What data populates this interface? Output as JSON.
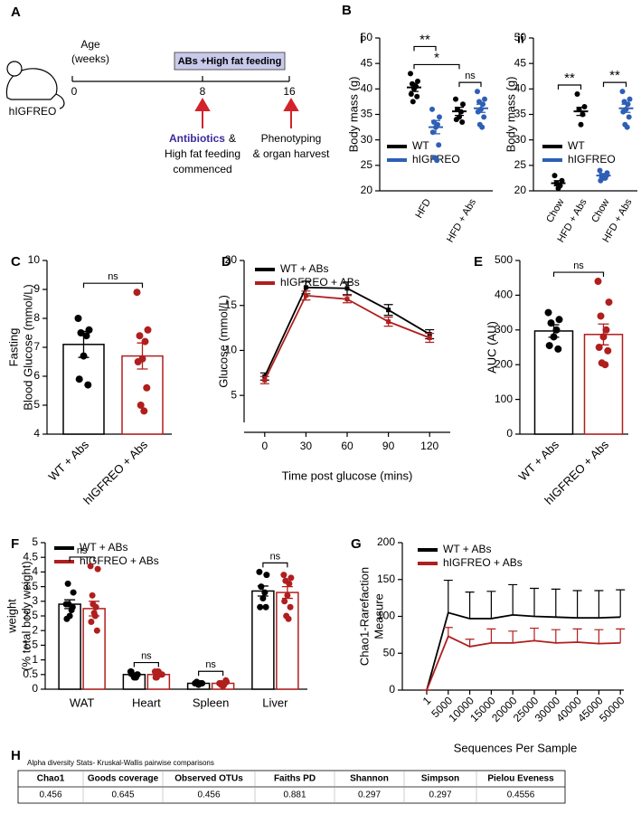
{
  "panel_labels": [
    "A",
    "B",
    "C",
    "D",
    "E",
    "F",
    "G",
    "H"
  ],
  "diagram": {
    "age_label": [
      "Age",
      "(weeks)"
    ],
    "box_label": "ABs +High fat feeding",
    "timeline": [
      0,
      8,
      16
    ],
    "mouse_label": "hIGFREO",
    "start_event": {
      "highlight": "Antibiotics",
      "lines": [
        "&",
        "High fat feeding",
        "commenced"
      ]
    },
    "end_event": [
      "Phenotyping",
      "& organ harvest"
    ]
  },
  "chart_data": [
    {
      "type": "dot",
      "subpanel": "i",
      "y_label": "Body mass (g)",
      "ylim": [
        20,
        50
      ],
      "yticks": [
        20,
        25,
        30,
        35,
        40,
        45,
        50
      ],
      "categories": [
        "HFD",
        "HFD + Abs"
      ],
      "series": [
        {
          "name": "WT",
          "color": "#000000",
          "values": [
            40.3,
            35.6
          ],
          "sems": [
            0.8,
            0.8
          ],
          "points": [
            [
              43,
              41.5,
              41,
              40.5,
              40,
              39,
              38.5,
              37.5
            ],
            [
              38,
              37,
              36,
              35.5,
              34.5,
              34,
              33.5
            ]
          ]
        },
        {
          "name": "hIGFREO",
          "color": "#2e5fb5",
          "values": [
            32.5,
            36.2
          ],
          "sems": [
            1.3,
            0.8
          ],
          "points": [
            [
              36,
              34.5,
              33.5,
              33,
              32.5,
              31.5,
              29,
              26.5,
              26
            ],
            [
              39.5,
              38,
              37.5,
              37,
              36,
              35.5,
              34.5,
              33,
              32.5
            ]
          ]
        }
      ],
      "brackets": [
        {
          "label": "*",
          "from": [
            0,
            0
          ],
          "to": [
            1,
            0
          ]
        },
        {
          "label": "**",
          "from": [
            0,
            0
          ],
          "to": [
            0,
            1
          ]
        },
        {
          "label": "ns",
          "from": [
            1,
            0
          ],
          "to": [
            1,
            1
          ]
        }
      ]
    },
    {
      "type": "dot",
      "subpanel": "ii",
      "y_label": "Body mass (g)",
      "ylim": [
        20,
        50
      ],
      "yticks": [
        20,
        25,
        30,
        35,
        40,
        45,
        50
      ],
      "categories": [
        "Chow",
        "HFD + Abs",
        "Chow",
        "HFD + Abs"
      ],
      "series": [
        {
          "name": "WT",
          "color": "#000000",
          "values": [
            21.5,
            35.6,
            null,
            null
          ],
          "sems": [
            0.5,
            0.8,
            null,
            null
          ],
          "points": [
            [
              23,
              22,
              21.5,
              21,
              20.5
            ],
            [
              39,
              36.5,
              36,
              35,
              33
            ],
            null,
            null
          ]
        },
        {
          "name": "hIGFREO",
          "color": "#2e5fb5",
          "values": [
            null,
            null,
            23,
            36.2
          ],
          "sems": [
            null,
            null,
            0.4,
            0.8
          ],
          "points": [
            null,
            null,
            [
              24,
              23.5,
              23,
              22.5,
              22.5,
              22,
              23,
              22.5
            ],
            [
              39.5,
              38,
              37.5,
              37,
              36,
              35.5,
              34.5,
              33,
              32.5
            ]
          ]
        }
      ],
      "brackets": [
        {
          "label": "**",
          "from": [
            0,
            0
          ],
          "to": [
            1,
            0
          ]
        },
        {
          "label": "**",
          "from": [
            2,
            1
          ],
          "to": [
            3,
            1
          ]
        }
      ]
    },
    {
      "type": "bar",
      "y_label": [
        "Fasting",
        "Blood Glucose (mmol/L)"
      ],
      "ylim": [
        4,
        10
      ],
      "yticks": [
        4,
        5,
        6,
        7,
        8,
        9,
        10
      ],
      "categories": [
        "WT + Abs",
        "hIGFREO + Abs"
      ],
      "series": [
        {
          "color": "#000000",
          "values": [
            7.1,
            null
          ],
          "sems": [
            0.45,
            null
          ],
          "points": [
            [
              8,
              7.6,
              7.5,
              7.4,
              6.7,
              5.9,
              5.7
            ],
            null
          ]
        },
        {
          "color": "#b01e1e",
          "values": [
            null,
            6.7
          ],
          "sems": [
            null,
            0.45
          ],
          "points": [
            null,
            [
              8.9,
              7.6,
              7.4,
              7.2,
              6.6,
              6.5,
              5.6,
              5.0,
              4.8
            ]
          ]
        }
      ],
      "brackets": [
        {
          "label": "ns",
          "from": [
            0,
            0
          ],
          "to": [
            1,
            1
          ]
        }
      ]
    },
    {
      "type": "line",
      "y_label": "Glucose (mmol/L)",
      "x_label": "Time post glucose (mins)",
      "x": [
        0,
        30,
        60,
        90,
        120
      ],
      "xlim": [
        -15,
        135
      ],
      "xticks": [
        0,
        30,
        60,
        90,
        120
      ],
      "ylim": [
        2,
        20
      ],
      "yticks": [
        5,
        10,
        15,
        20
      ],
      "error_bars": "both",
      "markers": true,
      "series": [
        {
          "name": "WT + ABs",
          "color": "#000000",
          "values": [
            7.1,
            17.0,
            16.9,
            14.5,
            11.8
          ],
          "errors": [
            0.4,
            0.7,
            0.7,
            0.6,
            0.5
          ]
        },
        {
          "name": "hIGFREO + ABs",
          "color": "#b01e1e",
          "values": [
            6.7,
            16.1,
            15.7,
            13.2,
            11.4
          ],
          "errors": [
            0.4,
            0.5,
            0.4,
            0.5,
            0.5
          ]
        }
      ]
    },
    {
      "type": "bar",
      "y_label": "AUC (AU)",
      "ylim": [
        0,
        500
      ],
      "yticks": [
        0,
        100,
        200,
        300,
        400,
        500
      ],
      "categories": [
        "WT + Abs",
        "hIGFREO + Abs"
      ],
      "series": [
        {
          "color": "#000000",
          "values": [
            297,
            null
          ],
          "sems": [
            18,
            null
          ],
          "points": [
            [
              350,
              330,
              320,
              300,
              280,
              255,
              245
            ],
            null
          ]
        },
        {
          "color": "#b01e1e",
          "values": [
            null,
            287
          ],
          "sems": [
            null,
            30
          ],
          "points": [
            null,
            [
              440,
              380,
              340,
              300,
              280,
              250,
              240,
              205,
              200
            ]
          ]
        }
      ],
      "brackets": [
        {
          "label": "ns",
          "from": [
            0,
            0
          ],
          "to": [
            1,
            1
          ]
        }
      ]
    },
    {
      "type": "bar",
      "y_label": [
        "weight",
        "(% total body weight)"
      ],
      "ylim": [
        0,
        5
      ],
      "yticks": [
        0,
        0.5,
        1,
        1.5,
        2,
        2.5,
        3,
        3.5,
        4,
        4.5,
        5
      ],
      "categories": [
        "WAT",
        "Heart",
        "Spleen",
        "Liver"
      ],
      "series": [
        {
          "name": "WT + ABs",
          "color": "#000000",
          "values": [
            2.9,
            0.5,
            0.2,
            3.35
          ],
          "sems": [
            0.15,
            0.04,
            0.02,
            0.17
          ],
          "points": [
            [
              2.9,
              3.3,
              3.6,
              2.7,
              2.5,
              2.4,
              2.8,
              2.9
            ],
            [
              0.6,
              0.5,
              0.5,
              0.4,
              0.4,
              0.6,
              0.5
            ],
            [
              0.2,
              0.2,
              0.25,
              0.2,
              0.15,
              0.2,
              0.2
            ],
            [
              4.0,
              3.9,
              3.5,
              3.3,
              3.1,
              2.8,
              2.8
            ]
          ]
        },
        {
          "name": "hIGFREO + ABs",
          "color": "#b01e1e",
          "values": [
            2.75,
            0.5,
            0.2,
            3.3
          ],
          "sems": [
            0.25,
            0.03,
            0.02,
            0.2
          ],
          "points": [
            [
              4.2,
              4.1,
              3.2,
              2.8,
              2.6,
              2.3,
              2.0,
              2.9,
              2.5
            ],
            [
              0.6,
              0.5,
              0.4,
              0.5,
              0.6,
              0.4,
              0.5,
              0.6,
              0.5
            ],
            [
              0.2,
              0.25,
              0.15,
              0.2,
              0.1,
              0.2,
              0.3,
              0.2,
              0.15
            ],
            [
              3.9,
              3.8,
              3.7,
              3.6,
              3.2,
              3.0,
              2.8,
              2.5,
              2.4
            ]
          ]
        }
      ],
      "brackets": [
        {
          "label": "ns",
          "from": [
            0,
            0
          ],
          "to": [
            0,
            1
          ]
        },
        {
          "label": "ns",
          "from": [
            1,
            0
          ],
          "to": [
            1,
            1
          ]
        },
        {
          "label": "ns",
          "from": [
            2,
            0
          ],
          "to": [
            2,
            1
          ]
        },
        {
          "label": "ns",
          "from": [
            3,
            0
          ],
          "to": [
            3,
            1
          ]
        }
      ]
    },
    {
      "type": "line",
      "y_label": [
        "Chao1-Rarefaction",
        "Measure"
      ],
      "x_label": "Sequences Per Sample",
      "categories": [
        "1",
        "5000",
        "10000",
        "15000",
        "20000",
        "25000",
        "30000",
        "40000",
        "45000",
        "50000"
      ],
      "ylim": [
        0,
        200
      ],
      "yticks": [
        0,
        50,
        100,
        150,
        200
      ],
      "error_bars": "upper",
      "series": [
        {
          "name": "WT + ABs",
          "color": "#000000",
          "values": [
            0,
            105,
            97,
            97,
            102,
            100,
            99,
            98,
            98,
            99
          ],
          "errors": [
            0,
            44,
            36,
            37,
            41,
            38,
            38,
            37,
            37,
            37
          ]
        },
        {
          "name": "hIGFREO + ABs",
          "color": "#b01e1e",
          "values": [
            0,
            73,
            59,
            64,
            64,
            67,
            64,
            65,
            63,
            64
          ],
          "errors": [
            0,
            12,
            10,
            19,
            16,
            17,
            18,
            18,
            19,
            19
          ]
        }
      ]
    }
  ],
  "table": {
    "caption": "Alpha diversity Stats- Kruskal-Wallis pairwise comparisons",
    "header": [
      "Chao1",
      "Goods coverage",
      "Observed OTUs",
      "Faiths PD",
      "Shannon",
      "Simpson",
      "Pielou Eveness"
    ],
    "rows": [
      [
        0.456,
        0.645,
        0.456,
        0.881,
        0.297,
        0.297,
        0.4556
      ]
    ]
  }
}
